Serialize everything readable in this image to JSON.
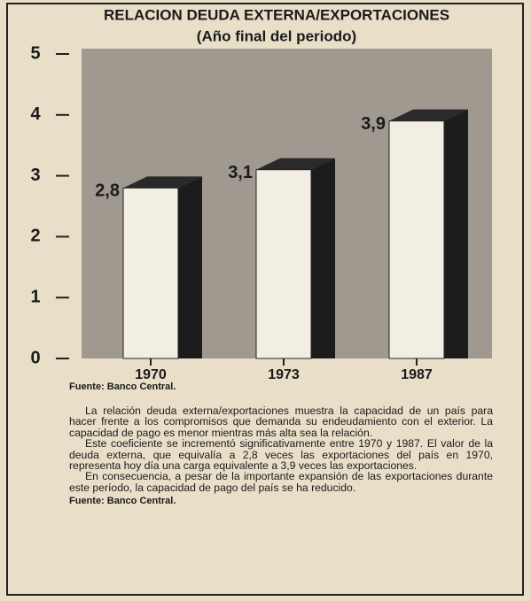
{
  "chart_data": {
    "type": "bar",
    "title": "RELACION DEUDA EXTERNA/EXPORTACIONES",
    "subtitle": "(Año final del periodo)",
    "categories": [
      "1970",
      "1973",
      "1987"
    ],
    "values": [
      2.8,
      3.1,
      3.9
    ],
    "value_labels": [
      "2,8",
      "3,1",
      "3,9"
    ],
    "ylim": [
      0,
      5
    ],
    "yticks": [
      0,
      1,
      2,
      3,
      4,
      5
    ],
    "grid": false,
    "color": "#f3eee4",
    "source": "Fuente: Banco Central."
  },
  "text": {
    "paragraphs": [
      "La relación deuda externa/exportaciones muestra la capacidad de un país para hacer frente a los compromisos que demanda su endeudamiento con el exterior. La capacidad de pago es menor mientras más alta sea la relación.",
      "Este coeficiente se incrementó significativamente entre 1970 y 1987. El valor de la deuda externa, que equivalía a 2,8 veces las exportaciones del país en 1970, representa hoy día una carga equivalente a 3,9 veces las exportaciones.",
      "En consecuencia, a pesar de la importante expansión de las exportaciones durante este período, la capacidad de pago del país se ha reducido."
    ],
    "source": "Fuente: Banco Central."
  }
}
